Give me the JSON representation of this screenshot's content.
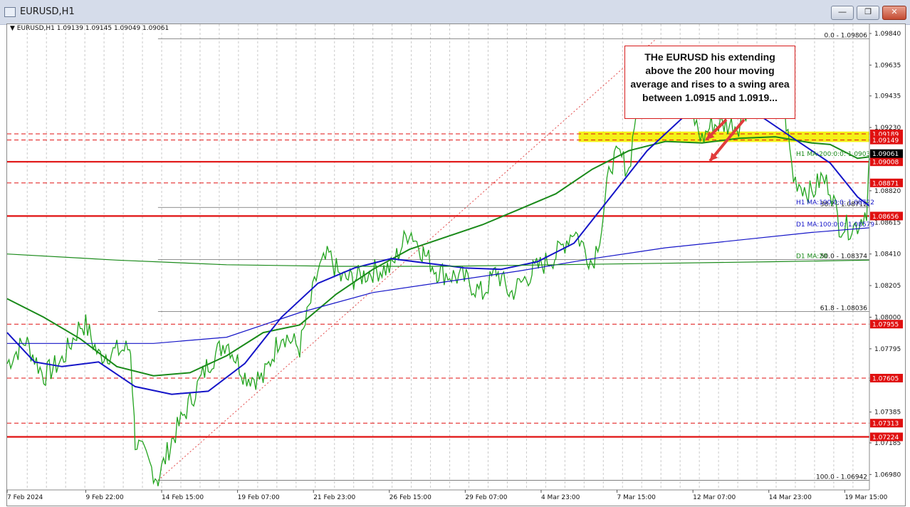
{
  "window": {
    "title": "EURUSD,H1",
    "buttons": [
      "minimize",
      "restore",
      "close"
    ]
  },
  "info_line": {
    "symbol": "EURUSD,H1",
    "ohlc": "1.09139 1.09145 1.09049 1.09061"
  },
  "annotation": {
    "text": "THe EURUSD his extending above the 200 hour moving average and rises to a swing area between 1.0915 and 1.0919..."
  },
  "colors": {
    "ma200_h1": "#1a8a1a",
    "ma100_h1": "#1515c8",
    "ma100_d1": "#1515c8",
    "ma200_d1": "#1a8a1a",
    "candles": "#23a41f",
    "resistance_line": "#e01010",
    "swing_zone": "#f3f000",
    "arrow": "#e03c3c"
  },
  "chart_data": {
    "type": "line",
    "symbol": "EURUSD",
    "timeframe": "H1",
    "ylim": [
      1.0688,
      1.099
    ],
    "y_ticks": [
      1.0984,
      1.09635,
      1.09435,
      1.0923,
      1.09025,
      1.0882,
      1.08615,
      1.0841,
      1.08205,
      1.08,
      1.07795,
      1.0759,
      1.07385,
      1.07185,
      1.0698
    ],
    "x_ticks": [
      "7 Feb 2024",
      "9 Feb 22:00",
      "14 Feb 15:00",
      "19 Feb 07:00",
      "21 Feb 23:00",
      "26 Feb 15:00",
      "29 Feb 07:00",
      "4 Mar 23:00",
      "7 Mar 15:00",
      "12 Mar 07:00",
      "14 Mar 23:00",
      "19 Mar 15:00"
    ],
    "x_tick_bars": [
      0,
      86,
      169,
      252,
      335,
      418,
      501,
      584,
      667,
      750,
      833,
      916
    ],
    "bar_count": 943,
    "series": [
      {
        "name": "H1 MA:200:0:0",
        "color": "#1a8a1a",
        "bars": [
          0,
          40,
          80,
          120,
          160,
          200,
          240,
          280,
          320,
          360,
          400,
          440,
          480,
          520,
          560,
          600,
          640,
          680,
          720,
          760,
          800,
          840,
          880,
          900,
          930,
          943
        ],
        "values": [
          1.0812,
          1.08,
          1.0786,
          1.0768,
          1.0762,
          1.0764,
          1.0775,
          1.079,
          1.0795,
          1.0815,
          1.0831,
          1.0844,
          1.0852,
          1.086,
          1.087,
          1.088,
          1.0896,
          1.0908,
          1.0914,
          1.0913,
          1.0916,
          1.0917,
          1.0913,
          1.0912,
          1.0903,
          1.0904
        ]
      },
      {
        "name": "H1 MA:100:0:0",
        "color": "#1515c8",
        "bars": [
          0,
          30,
          60,
          100,
          140,
          180,
          220,
          260,
          300,
          340,
          380,
          420,
          460,
          500,
          540,
          580,
          620,
          660,
          700,
          740,
          760,
          800,
          820,
          860,
          900,
          930,
          943
        ],
        "values": [
          1.079,
          1.0771,
          1.0768,
          1.0771,
          1.0755,
          1.075,
          1.0752,
          1.077,
          1.08,
          1.0822,
          1.0832,
          1.0838,
          1.0835,
          1.0832,
          1.0831,
          1.0836,
          1.0848,
          1.0878,
          1.0908,
          1.093,
          1.0938,
          1.0937,
          1.0932,
          1.0916,
          1.09,
          1.0878,
          1.0872
        ]
      },
      {
        "name": "D1 MA:100:0:0",
        "color": "#1515c8",
        "bars": [
          0,
          80,
          160,
          240,
          320,
          400,
          480,
          560,
          640,
          720,
          800,
          880,
          943
        ],
        "values": [
          1.0783,
          1.0783,
          1.0783,
          1.0787,
          1.0803,
          1.0816,
          1.0823,
          1.083,
          1.0838,
          1.0845,
          1.085,
          1.0855,
          1.0858
        ]
      },
      {
        "name": "D1 MA:200",
        "color": "#1a8a1a",
        "bars": [
          0,
          120,
          240,
          360,
          480,
          600,
          720,
          840,
          943
        ],
        "values": [
          1.0841,
          1.0837,
          1.0834,
          1.0833,
          1.0833,
          1.0834,
          1.0835,
          1.0836,
          1.0837
        ]
      },
      {
        "name": "Price",
        "color": "#23a41f",
        "bars": [
          0,
          20,
          40,
          60,
          80,
          86,
          100,
          120,
          135,
          140,
          150,
          165,
          180,
          200,
          220,
          240,
          260,
          280,
          300,
          320,
          340,
          352,
          365,
          380,
          400,
          420,
          440,
          455,
          470,
          480,
          500,
          520,
          535,
          550,
          575,
          600,
          620,
          640,
          650,
          660,
          670,
          680,
          690,
          700,
          710,
          720,
          730,
          740,
          750,
          760,
          770,
          780,
          800,
          820,
          840,
          850,
          860,
          870,
          880,
          890,
          900,
          910,
          920,
          930,
          940,
          943
        ],
        "values": [
          1.077,
          1.0785,
          1.0762,
          1.0772,
          1.0795,
          1.0795,
          1.0775,
          1.0778,
          1.078,
          1.072,
          1.071,
          1.0695,
          1.072,
          1.0745,
          1.077,
          1.0785,
          1.0762,
          1.076,
          1.079,
          1.078,
          1.083,
          1.084,
          1.0825,
          1.0825,
          1.083,
          1.0832,
          1.0857,
          1.0842,
          1.083,
          1.0828,
          1.0825,
          1.0815,
          1.083,
          1.0815,
          1.083,
          1.084,
          1.0857,
          1.0835,
          1.0858,
          1.09,
          1.0905,
          1.0895,
          1.0945,
          1.0953,
          1.096,
          1.0945,
          1.095,
          1.0935,
          1.093,
          1.0915,
          1.0925,
          1.0925,
          1.0925,
          1.095,
          1.0945,
          1.0935,
          1.089,
          1.0885,
          1.088,
          1.089,
          1.0885,
          1.086,
          1.0858,
          1.086,
          1.087,
          1.0906
        ]
      }
    ],
    "horizontal_levels": [
      {
        "value": 1.09189,
        "label": "1.09189",
        "style": "dashed"
      },
      {
        "value": 1.09149,
        "label": "1.09149",
        "style": "dashed"
      },
      {
        "value": 1.09008,
        "label": "1.09008",
        "style": "solid"
      },
      {
        "value": 1.08871,
        "label": "1.08871",
        "style": "dashed"
      },
      {
        "value": 1.08656,
        "label": "1.08656",
        "style": "solid"
      },
      {
        "value": 1.07955,
        "label": "1.07955",
        "style": "dashed"
      },
      {
        "value": 1.07605,
        "label": "1.07605",
        "style": "dashed"
      },
      {
        "value": 1.07313,
        "label": "1.07313",
        "style": "dashed"
      },
      {
        "value": 1.07224,
        "label": "1.07224",
        "style": "solid"
      }
    ],
    "current_price": {
      "value": 1.09061,
      "label": "1.09061"
    },
    "fibonacci": {
      "from_bar": 165,
      "to_bar": 710,
      "end_bar": 1093,
      "levels": [
        {
          "value": 1.09806,
          "label": "0.0 - 1.09806"
        },
        {
          "value": 1.08712,
          "label": "38.2 - 1.08712"
        },
        {
          "value": 1.08374,
          "label": "50.0 - 1.08374"
        },
        {
          "value": 1.08036,
          "label": "61.8 - 1.08036"
        },
        {
          "value": 1.06942,
          "label": "100.0 - 1.06942"
        }
      ]
    },
    "swing_zone": {
      "low": 1.0915,
      "high": 1.0919
    },
    "ma_labels": [
      {
        "text": "H1 MA:200:0:0: 1.09037",
        "value": 1.09037
      },
      {
        "text": "H1 MA:100:0:0: 1.08722",
        "value": 1.08722
      },
      {
        "text": "D1 MA:100:0:0: 1.08579",
        "value": 1.08579
      },
      {
        "text": "D1 MA:20",
        "value": 1.08374
      }
    ],
    "grid": true,
    "legend": "none"
  }
}
